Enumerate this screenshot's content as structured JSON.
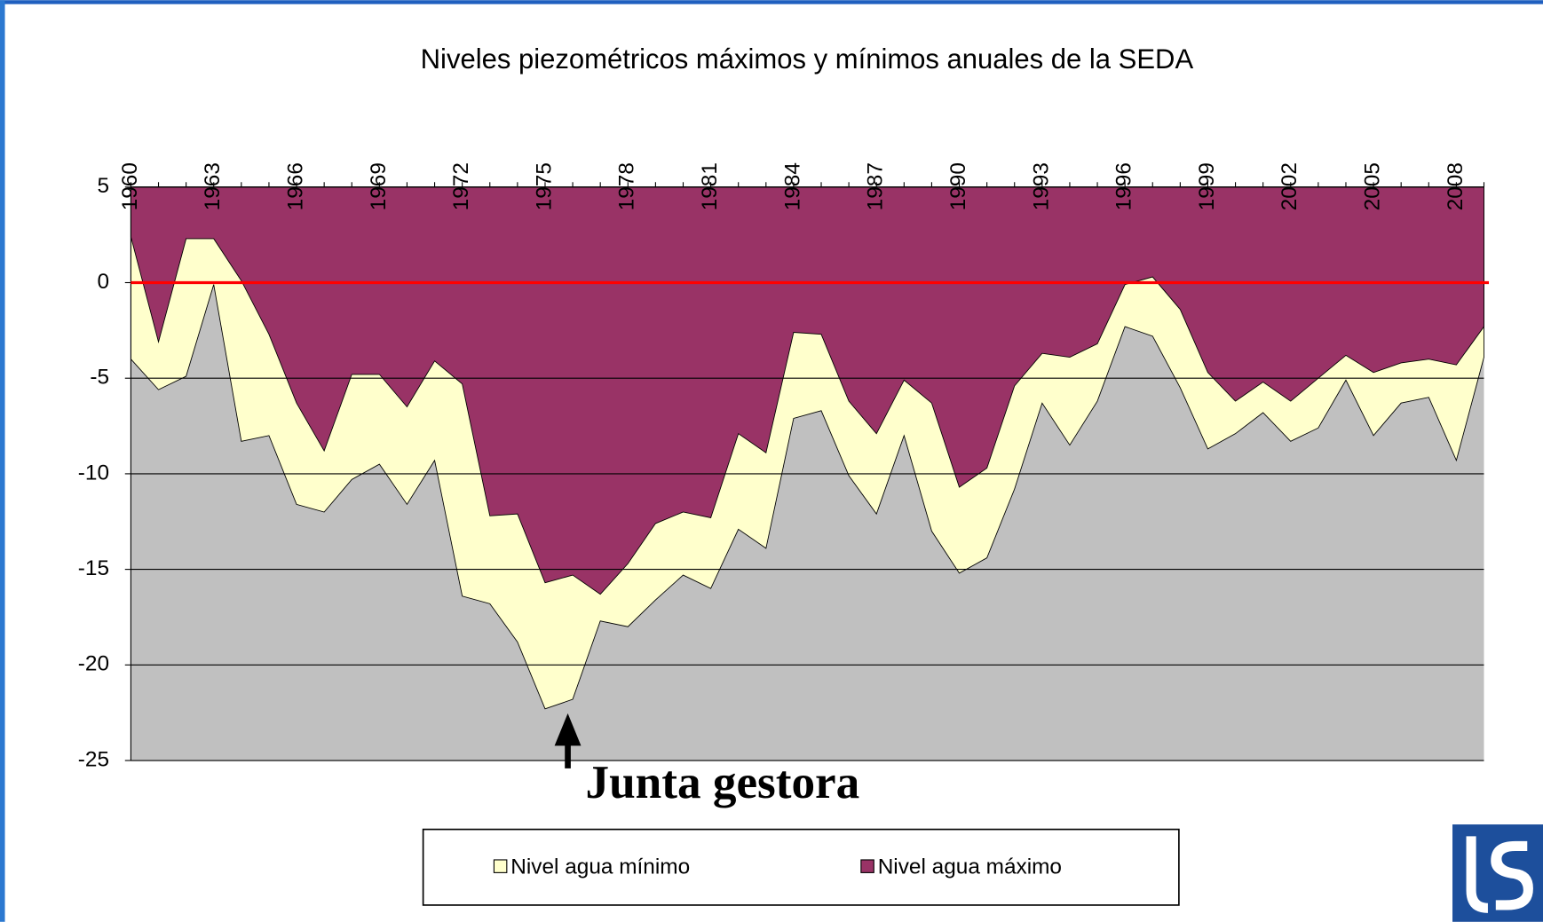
{
  "chart_data": {
    "type": "area",
    "title": "Niveles piezométricos máximos y mínimos anuales de la SEDA",
    "categories": [
      "1960",
      null,
      null,
      "1963",
      null,
      null,
      "1966",
      null,
      null,
      "1969",
      null,
      null,
      "1972",
      null,
      null,
      "1975",
      null,
      null,
      "1978",
      null,
      null,
      "1981",
      null,
      null,
      "1984",
      null,
      null,
      "1987",
      null,
      null,
      "1990",
      null,
      null,
      "1993",
      null,
      null,
      "1996",
      null,
      null,
      "1999",
      null,
      null,
      "2002",
      null,
      null,
      "2005",
      null,
      null,
      "2008",
      null
    ],
    "series": [
      {
        "name": "Nivel agua mínimo",
        "color": "#ffffcc",
        "values": [
          -4.0,
          -5.6,
          -4.9,
          -0.1,
          -8.3,
          -8.0,
          -11.6,
          -12.0,
          -10.3,
          -9.5,
          -11.6,
          -9.3,
          -16.4,
          -16.8,
          -18.8,
          -22.3,
          -21.8,
          -17.7,
          -18.0,
          -16.6,
          -15.3,
          -16.0,
          -12.9,
          -13.9,
          -7.1,
          -6.7,
          -10.1,
          -12.1,
          -8.0,
          -13.0,
          -15.2,
          -14.4,
          -10.8,
          -6.3,
          -8.5,
          -6.2,
          -2.3,
          -2.8,
          -5.5,
          -8.7,
          -7.9,
          -6.8,
          -8.3,
          -7.6,
          -5.1,
          -8.0,
          -6.3,
          -6.0,
          -9.3,
          -3.9
        ]
      },
      {
        "name": "Nivel agua máximo",
        "color": "#993366",
        "values": [
          2.4,
          -3.1,
          2.3,
          2.3,
          0.1,
          -2.7,
          -6.3,
          -8.8,
          -4.8,
          -4.8,
          -6.5,
          -4.1,
          -5.3,
          -12.2,
          -12.1,
          -15.7,
          -15.3,
          -16.3,
          -14.7,
          -12.6,
          -12.0,
          -12.3,
          -7.9,
          -8.9,
          -2.6,
          -2.7,
          -6.2,
          -7.9,
          -5.1,
          -6.3,
          -10.7,
          -9.7,
          -5.4,
          -3.7,
          -3.9,
          -3.2,
          -0.1,
          0.3,
          -1.4,
          -4.7,
          -6.2,
          -5.2,
          -6.2,
          -5.0,
          -3.8,
          -4.7,
          -4.2,
          -4.0,
          -4.3,
          -2.3
        ]
      }
    ],
    "ylim": [
      -25,
      5
    ],
    "yticks": [
      5,
      0,
      -5,
      -10,
      -15,
      -20,
      -25
    ],
    "grid": true,
    "plot_background": "#c0c0c0",
    "reference_line": {
      "value": 0,
      "color": "#ff0000"
    },
    "annotation": "Junta gestora",
    "legend": "bottom"
  }
}
